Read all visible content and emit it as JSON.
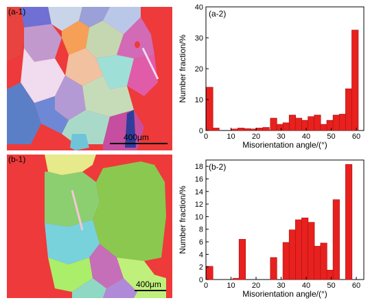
{
  "panels": {
    "a1": {
      "label": "(a-1)",
      "scalebar": "400μm"
    },
    "b1": {
      "label": "(b-1)",
      "scalebar": "400μm"
    }
  },
  "colors": {
    "bar": "#e8211e",
    "bar_edge": "#a01010"
  },
  "chart_data": [
    {
      "type": "bar",
      "panel_label": "(a-2)",
      "title": "",
      "xlabel": "Misorientation angle/(°)",
      "ylabel": "Number fraction/%",
      "xlim": [
        0,
        63
      ],
      "ylim": [
        0,
        40
      ],
      "xticks": [
        0,
        10,
        20,
        30,
        40,
        50,
        60
      ],
      "yticks": [
        0,
        10,
        20,
        30,
        40
      ],
      "grid": false,
      "x": [
        1.5,
        4,
        11.5,
        14,
        16.5,
        19,
        21.5,
        24,
        27,
        29.5,
        32,
        34.5,
        37,
        39.5,
        42,
        44.5,
        47,
        49.5,
        52,
        54.5,
        57,
        59.5
      ],
      "values": [
        14,
        0.8,
        0.5,
        0.8,
        0.6,
        0.5,
        0.8,
        1,
        4,
        2,
        2.5,
        5,
        4,
        3.3,
        4.5,
        5,
        2,
        3.3,
        5,
        5.3,
        13.5,
        32.5
      ]
    },
    {
      "type": "bar",
      "panel_label": "(b-2)",
      "title": "",
      "xlabel": "Misorientation angle/(°)",
      "ylabel": "Number fraction/%",
      "xlim": [
        0,
        63
      ],
      "ylim": [
        0,
        19
      ],
      "xticks": [
        0,
        10,
        20,
        30,
        40,
        50,
        60
      ],
      "yticks": [
        0,
        2,
        4,
        6,
        8,
        10,
        12,
        14,
        16,
        18
      ],
      "grid": false,
      "x": [
        1.5,
        12,
        14.5,
        27,
        32,
        34.5,
        37,
        39.5,
        42,
        44.5,
        47,
        49.5,
        52,
        57,
        59.5,
        62
      ],
      "values": [
        2.1,
        0.2,
        6.4,
        3.5,
        5.9,
        7.9,
        9.5,
        9.8,
        9.1,
        5.3,
        5.8,
        1.5,
        12.7,
        18.3,
        0,
        0
      ]
    }
  ]
}
